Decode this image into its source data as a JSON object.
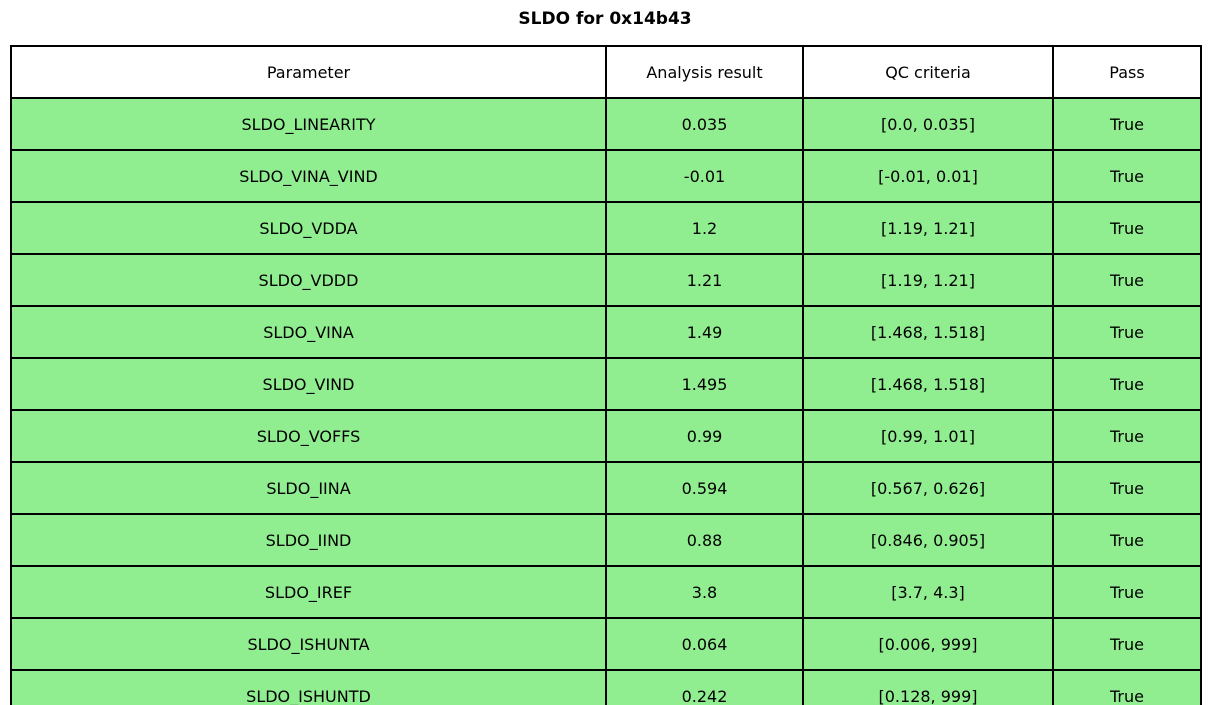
{
  "chart_data": {
    "type": "table",
    "title": "SLDO for 0x14b43",
    "columns": [
      "Parameter",
      "Analysis result",
      "QC criteria",
      "Pass"
    ],
    "rows": [
      [
        "SLDO_LINEARITY",
        "0.035",
        "[0.0, 0.035]",
        "True"
      ],
      [
        "SLDO_VINA_VIND",
        "-0.01",
        "[-0.01, 0.01]",
        "True"
      ],
      [
        "SLDO_VDDA",
        "1.2",
        "[1.19, 1.21]",
        "True"
      ],
      [
        "SLDO_VDDD",
        "1.21",
        "[1.19, 1.21]",
        "True"
      ],
      [
        "SLDO_VINA",
        "1.49",
        "[1.468, 1.518]",
        "True"
      ],
      [
        "SLDO_VIND",
        "1.495",
        "[1.468, 1.518]",
        "True"
      ],
      [
        "SLDO_VOFFS",
        "0.99",
        "[0.99, 1.01]",
        "True"
      ],
      [
        "SLDO_IINA",
        "0.594",
        "[0.567, 0.626]",
        "True"
      ],
      [
        "SLDO_IIND",
        "0.88",
        "[0.846, 0.905]",
        "True"
      ],
      [
        "SLDO_IREF",
        "3.8",
        "[3.7, 4.3]",
        "True"
      ],
      [
        "SLDO_ISHUNTA",
        "0.064",
        "[0.006, 999]",
        "True"
      ],
      [
        "SLDO_ISHUNTD",
        "0.242",
        "[0.128, 999]",
        "True"
      ]
    ],
    "layout": {
      "header_row": true,
      "grid": true,
      "legend": "none"
    },
    "colors": {
      "cell_bg": "#90EE90",
      "header_bg": "#ffffff",
      "border": "#000000",
      "text": "#000000"
    }
  }
}
